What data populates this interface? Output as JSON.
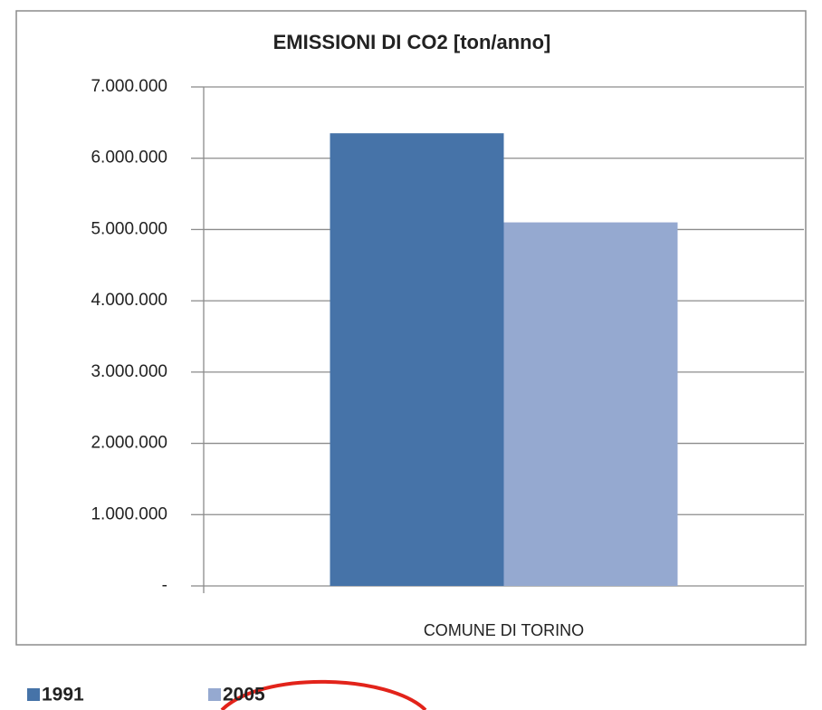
{
  "chart_data": {
    "type": "bar",
    "title": "EMISSIONI DI CO2 [ton/anno]",
    "categories": [
      "COMUNE DI TORINO"
    ],
    "series": [
      {
        "name": "1991",
        "color": "#4673a8",
        "values": [
          6350000
        ]
      },
      {
        "name": "2005",
        "color": "#95a9d0",
        "values": [
          5100000
        ]
      }
    ],
    "ylim": [
      0,
      7000000
    ],
    "yticks": [
      {
        "value": 0,
        "label": "-"
      },
      {
        "value": 1000000,
        "label": "1.000.000"
      },
      {
        "value": 2000000,
        "label": "2.000.000"
      },
      {
        "value": 3000000,
        "label": "3.000.000"
      },
      {
        "value": 4000000,
        "label": "4.000.000"
      },
      {
        "value": 5000000,
        "label": "5.000.000"
      },
      {
        "value": 6000000,
        "label": "6.000.000"
      },
      {
        "value": 7000000,
        "label": "7.000.000"
      }
    ],
    "grid": true
  }
}
